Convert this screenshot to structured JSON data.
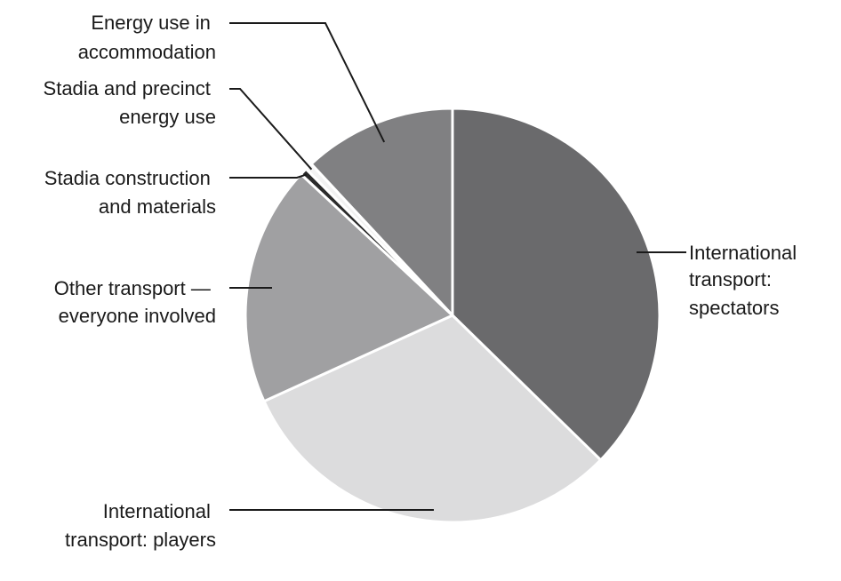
{
  "chart_data": {
    "type": "pie",
    "title": "",
    "start": "12 o'clock",
    "direction": "clockwise",
    "slices": [
      {
        "label": "International transport: spectators",
        "value": 40.0,
        "color": "#6a6a6c"
      },
      {
        "label": "International transport: players",
        "value": 33.1,
        "color": "#dcdcdd"
      },
      {
        "label": "Other transport — everyone involved",
        "value": 20.1,
        "color": "#a0a0a2"
      },
      {
        "label": "Stadia construction and materials",
        "value": 0.6,
        "color": "#2b2b2b"
      },
      {
        "label": "Stadia and precinct energy use",
        "value": 0.6,
        "color": "#f2f2f2"
      },
      {
        "label": "Energy use in accommodation",
        "value": 12.8,
        "color": "#808082"
      }
    ],
    "label_lines": [
      [
        "International",
        "transport:",
        "spectators"
      ],
      [
        "International",
        "transport: players"
      ],
      [
        "Other transport —",
        "everyone involved"
      ],
      [
        "Stadia construction",
        "and materials"
      ],
      [
        "Stadia and precinct",
        "energy use"
      ],
      [
        "Energy use in",
        "accommodation"
      ]
    ],
    "legend": "none",
    "data_labels": "external with leader lines"
  }
}
